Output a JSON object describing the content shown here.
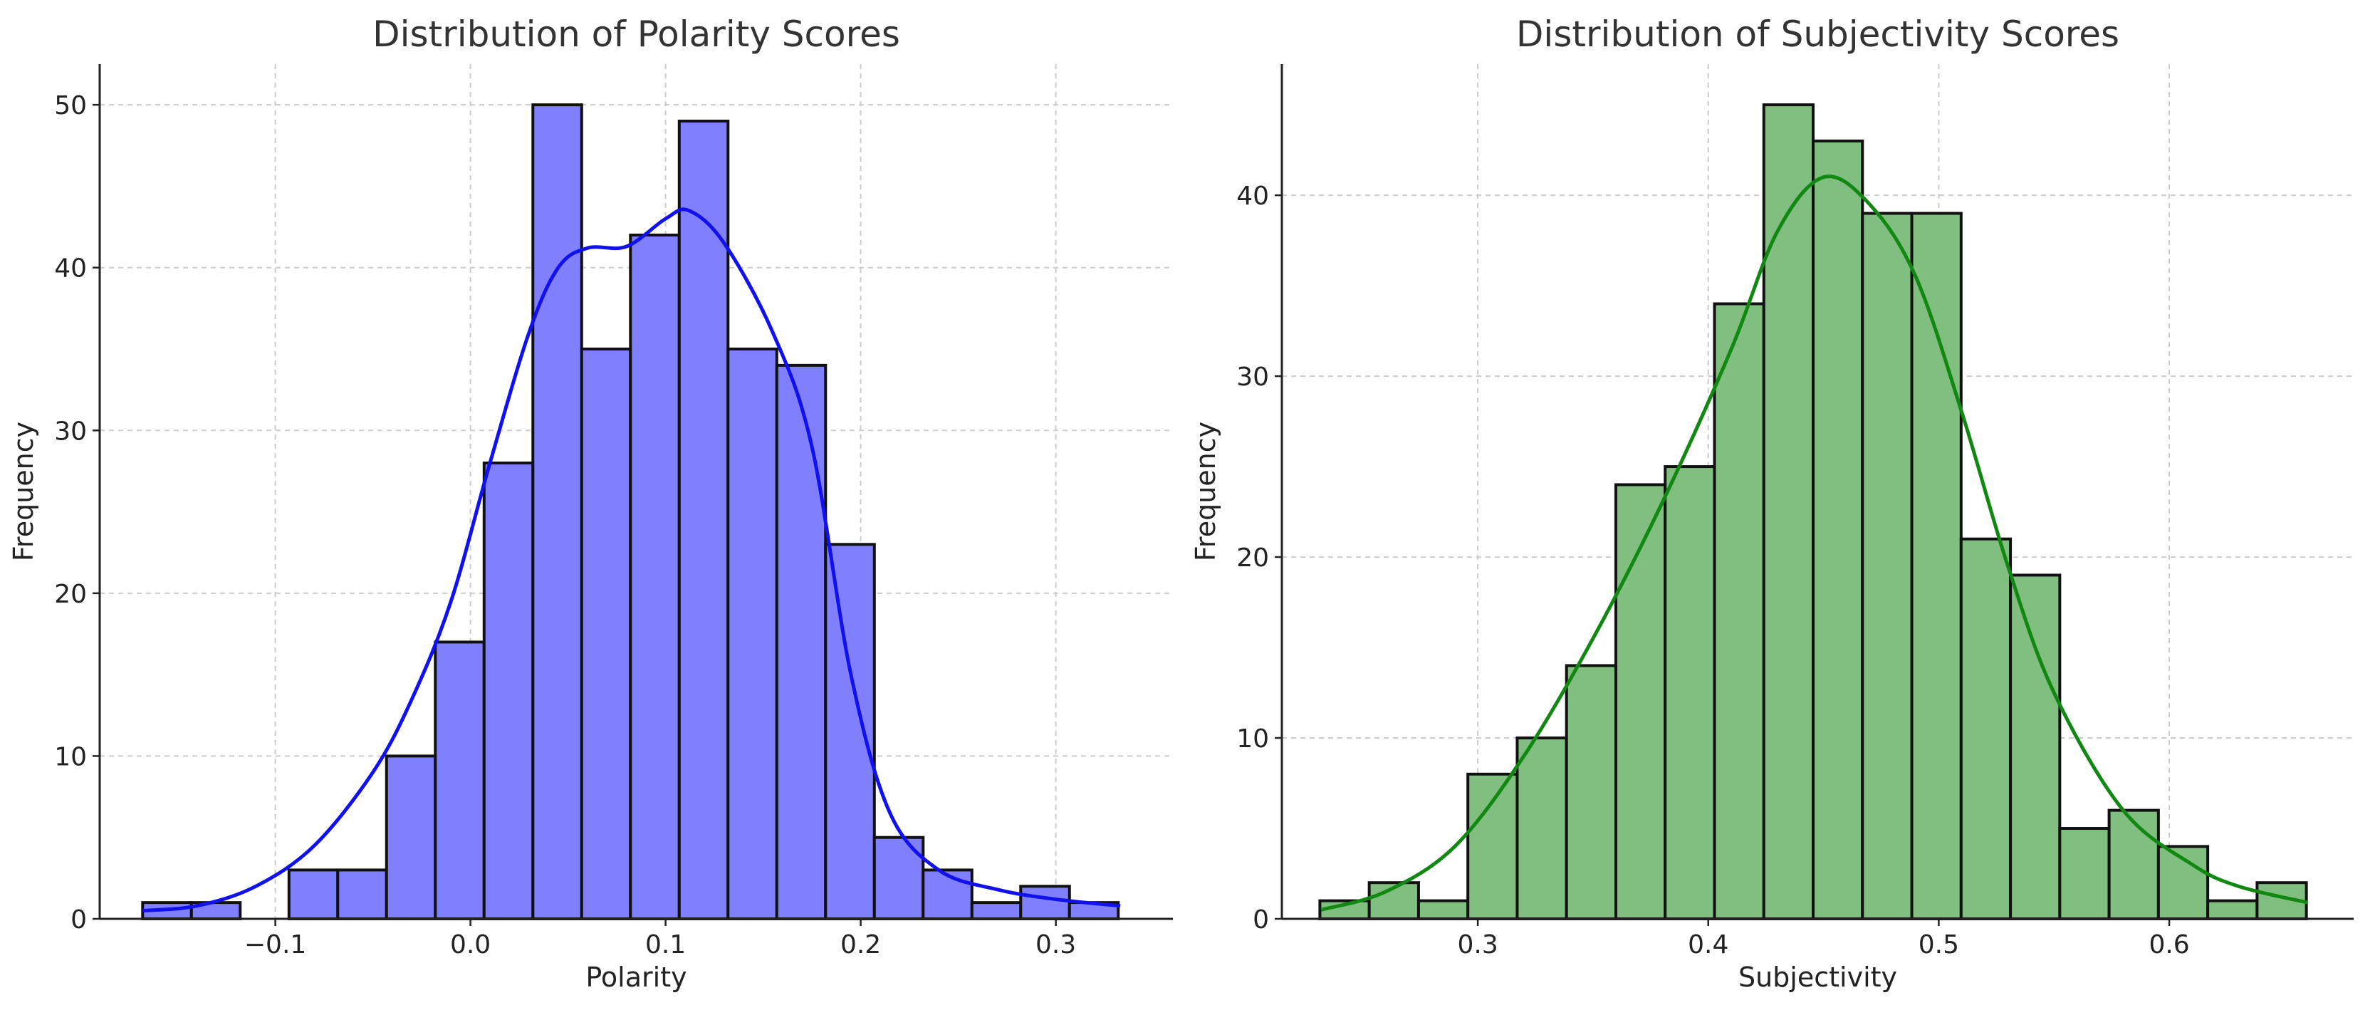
{
  "chart_data": [
    {
      "type": "bar",
      "title": "Distribution of Polarity Scores",
      "xlabel": "Polarity",
      "ylabel": "Frequency",
      "xlim": [
        -0.19,
        0.36
      ],
      "ylim": [
        0,
        52.5
      ],
      "xticks": [
        -0.1,
        0.0,
        0.1,
        0.2,
        0.3
      ],
      "xtick_labels": [
        "−0.1",
        "0.0",
        "0.1",
        "0.2",
        "0.3"
      ],
      "yticks": [
        0,
        10,
        20,
        30,
        40,
        50
      ],
      "ytick_labels": [
        "0",
        "10",
        "20",
        "30",
        "40",
        "50"
      ],
      "grid": true,
      "bar_color": "#8080ff",
      "kde_color": "#1111ee",
      "bin_start": -0.168,
      "bin_width": 0.025,
      "values": [
        1,
        1,
        0,
        3,
        3,
        10,
        17,
        28,
        50,
        35,
        42,
        49,
        35,
        34,
        23,
        5,
        3,
        1,
        2,
        1
      ],
      "kde": {
        "x": [
          -0.168,
          -0.14,
          -0.11,
          -0.08,
          -0.05,
          -0.03,
          -0.01,
          0.01,
          0.03,
          0.045,
          0.06,
          0.08,
          0.1,
          0.112,
          0.13,
          0.155,
          0.175,
          0.195,
          0.215,
          0.24,
          0.27,
          0.3,
          0.333
        ],
        "y": [
          0.5,
          0.8,
          2.0,
          4.5,
          9.0,
          13.5,
          19.5,
          28.0,
          36.0,
          40.0,
          41.2,
          41.3,
          43.0,
          43.5,
          41.5,
          36.0,
          29.0,
          15.0,
          6.5,
          3.0,
          1.8,
          1.2,
          0.8
        ]
      }
    },
    {
      "type": "bar",
      "title": "Distribution of Subjectivity Scores",
      "xlabel": "Subjectivity",
      "ylabel": "Frequency",
      "xlim": [
        0.215,
        0.68
      ],
      "ylim": [
        0,
        47.25
      ],
      "xticks": [
        0.3,
        0.4,
        0.5,
        0.6
      ],
      "xtick_labels": [
        "0.3",
        "0.4",
        "0.5",
        "0.6"
      ],
      "yticks": [
        0,
        10,
        20,
        30,
        40
      ],
      "ytick_labels": [
        "0",
        "10",
        "20",
        "30",
        "40"
      ],
      "grid": true,
      "bar_color": "#80bf80",
      "kde_color": "#118811",
      "bin_start": 0.2315,
      "bin_width": 0.0214,
      "values": [
        1,
        2,
        1,
        8,
        10,
        14,
        24,
        25,
        34,
        45,
        43,
        39,
        39,
        21,
        19,
        5,
        6,
        4,
        1,
        2
      ],
      "kde": {
        "x": [
          0.232,
          0.26,
          0.29,
          0.32,
          0.35,
          0.38,
          0.41,
          0.43,
          0.45,
          0.47,
          0.49,
          0.51,
          0.53,
          0.55,
          0.58,
          0.61,
          0.63,
          0.66
        ],
        "y": [
          0.5,
          1.5,
          4.0,
          9.0,
          15.5,
          23.0,
          31.5,
          38.0,
          41.0,
          39.5,
          35.5,
          28.0,
          19.5,
          12.5,
          6.0,
          3.0,
          1.8,
          0.9
        ]
      }
    }
  ]
}
